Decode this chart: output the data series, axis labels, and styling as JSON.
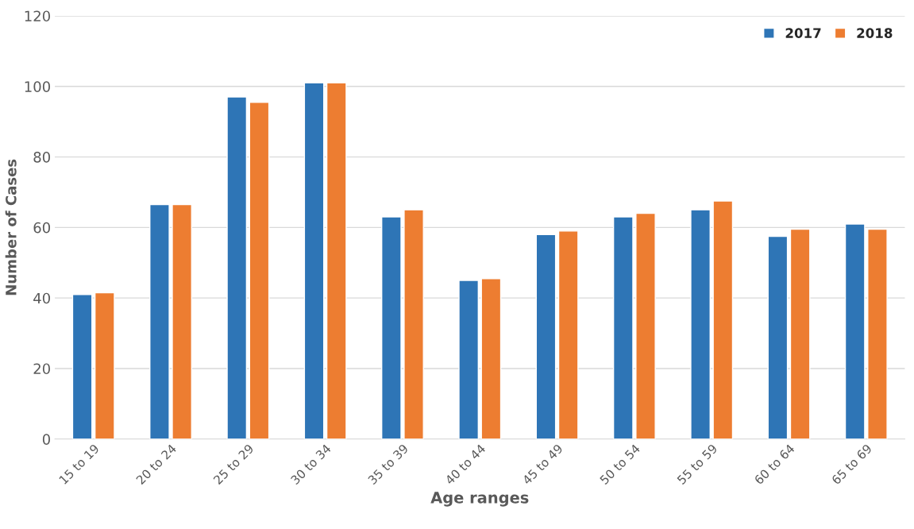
{
  "chart_data": {
    "type": "bar",
    "xlabel": "Age ranges",
    "ylabel": "Number of Cases",
    "categories": [
      "15 to 19",
      "20 to 24",
      "25 to 29",
      "30 to 34",
      "35 to 39",
      "40 to 44",
      "45 to 49",
      "50 to 54",
      "55 to 59",
      "60 to 64",
      "65 to 69"
    ],
    "series": [
      {
        "name": "2017",
        "color": "#2e75b6",
        "values": [
          41,
          66.5,
          97,
          101,
          63,
          45,
          58,
          63,
          65,
          57.5,
          61
        ]
      },
      {
        "name": "2018",
        "color": "#ed7d31",
        "values": [
          41.5,
          66.5,
          95.5,
          101,
          65,
          45.5,
          59,
          64,
          67.5,
          59.5,
          59.5
        ]
      }
    ],
    "ylim": [
      0,
      120
    ],
    "yticks": [
      0,
      20,
      40,
      60,
      80,
      100,
      120
    ],
    "grid": "y",
    "legend": "top right"
  }
}
